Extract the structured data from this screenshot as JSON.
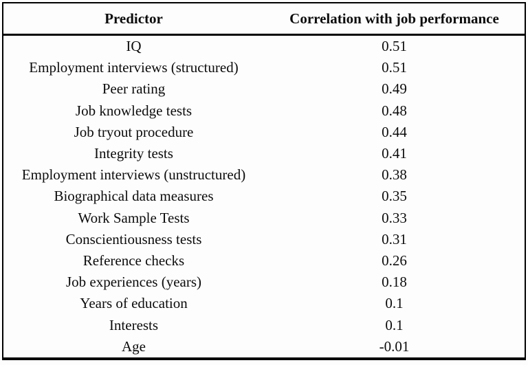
{
  "table": {
    "columns": [
      {
        "key": "predictor",
        "label": "Predictor"
      },
      {
        "key": "correlation",
        "label": "Correlation with job performance"
      }
    ],
    "rows": [
      {
        "predictor": "IQ",
        "correlation": "0.51"
      },
      {
        "predictor": "Employment interviews (structured)",
        "correlation": "0.51"
      },
      {
        "predictor": "Peer rating",
        "correlation": "0.49"
      },
      {
        "predictor": "Job knowledge tests",
        "correlation": "0.48"
      },
      {
        "predictor": "Job tryout procedure",
        "correlation": "0.44"
      },
      {
        "predictor": "Integrity tests",
        "correlation": "0.41"
      },
      {
        "predictor": "Employment interviews (unstructured)",
        "correlation": "0.38"
      },
      {
        "predictor": "Biographical data measures",
        "correlation": "0.35"
      },
      {
        "predictor": "Work Sample Tests",
        "correlation": "0.33"
      },
      {
        "predictor": "Conscientiousness tests",
        "correlation": "0.31"
      },
      {
        "predictor": "Reference checks",
        "correlation": "0.26"
      },
      {
        "predictor": "Job experiences (years)",
        "correlation": "0.18"
      },
      {
        "predictor": "Years of education",
        "correlation": "0.1"
      },
      {
        "predictor": "Interests",
        "correlation": "0.1"
      },
      {
        "predictor": "Age",
        "correlation": "-0.01"
      }
    ]
  },
  "colors": {
    "background": "#fdfdfd",
    "border": "#000000",
    "text": "#0c0c0c"
  }
}
